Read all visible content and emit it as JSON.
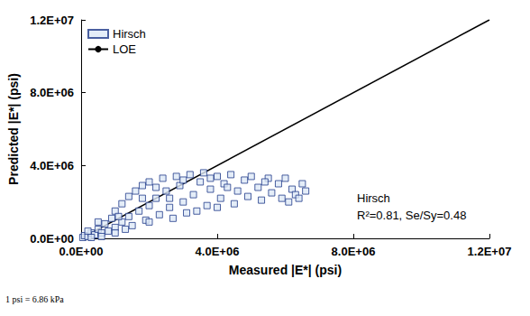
{
  "chart_data": {
    "type": "scatter",
    "x_label": "Measured |E*| (psi)",
    "y_label": "Predicted |E*| (psi)",
    "annotations": [
      "Hirsch",
      "R²=0.81, Se/Sy=0.48"
    ],
    "footnote": "1 psi = 6.86 kPa",
    "legend": "upper left",
    "grid": false,
    "xlim": [
      0,
      12000000
    ],
    "ylim": [
      0,
      12000000
    ],
    "xticks": [
      {
        "value": 0,
        "label": "0.0E+00"
      },
      {
        "value": 4000000,
        "label": "4.0E+06"
      },
      {
        "value": 8000000,
        "label": "8.0E+06"
      },
      {
        "value": 12000000,
        "label": "1.2E+07"
      }
    ],
    "yticks": [
      {
        "value": 0,
        "label": "0.0E+00"
      },
      {
        "value": 4000000,
        "label": "4.0E+06"
      },
      {
        "value": 8000000,
        "label": "8.0E+06"
      },
      {
        "value": 12000000,
        "label": "1.2E+07"
      }
    ],
    "series": [
      {
        "name": "Hirsch",
        "type": "scatter",
        "marker": "square",
        "color": "#1f3a8a",
        "x": [
          50000.0,
          100000.0,
          200000.0,
          300000.0,
          400000.0,
          500000.0,
          600000.0,
          700000.0,
          800000.0,
          900000.0,
          1000000.0,
          1000000.0,
          1200000.0,
          1200000.0,
          1400000.0,
          1400000.0,
          1500000.0,
          1600000.0,
          1700000.0,
          1800000.0,
          1900000.0,
          2000000.0,
          2000000.0,
          2200000.0,
          2300000.0,
          2400000.0,
          2500000.0,
          2600000.0,
          2800000.0,
          2900000.0,
          3000000.0,
          3100000.0,
          3200000.0,
          3300000.0,
          3500000.0,
          3600000.0,
          3700000.0,
          3800000.0,
          4000000.0,
          4100000.0,
          4200000.0,
          4400000.0,
          4500000.0,
          4600000.0,
          4800000.0,
          4900000.0,
          5000000.0,
          5200000.0,
          5300000.0,
          5500000.0,
          5600000.0,
          5800000.0,
          5900000.0,
          6000000.0,
          6200000.0,
          6300000.0,
          6500000.0,
          6600000.0,
          300000.0,
          600000.0,
          1000000.0,
          200000.0,
          500000.0,
          1300000.0,
          2000000.0,
          2700000.0,
          3400000.0,
          4000000.0,
          4300000.0,
          3000000.0,
          2200000.0,
          1100000.0,
          1800000.0,
          2600000.0,
          3800000.0,
          5400000.0,
          6100000.0,
          6400000.0
        ],
        "values": [
          50000.0,
          150000.0,
          100000.0,
          300000.0,
          200000.0,
          500000.0,
          300000.0,
          800000.0,
          400000.0,
          1100000.0,
          600000.0,
          1500000.0,
          900000.0,
          1900000.0,
          1200000.0,
          2300000.0,
          700000.0,
          2600000.0,
          1500000.0,
          2900000.0,
          1000000.0,
          1800000.0,
          3100000.0,
          2200000.0,
          1300000.0,
          3300000.0,
          2600000.0,
          1700000.0,
          3400000.0,
          2900000.0,
          2000000.0,
          1400000.0,
          3500000.0,
          2400000.0,
          3100000.0,
          3600000.0,
          1800000.0,
          2700000.0,
          3400000.0,
          2200000.0,
          3000000.0,
          3500000.0,
          1900000.0,
          2600000.0,
          3200000.0,
          2300000.0,
          3400000.0,
          2800000.0,
          2100000.0,
          3300000.0,
          2500000.0,
          3000000.0,
          2200000.0,
          3300000.0,
          2700000.0,
          2400000.0,
          3000000.0,
          2600000.0,
          50000.0,
          100000.0,
          300000.0,
          400000.0,
          900000.0,
          500000.0,
          900000.0,
          1100000.0,
          1500000.0,
          1700000.0,
          2800000.0,
          3200000.0,
          2800000.0,
          1200000.0,
          2200000.0,
          2200000.0,
          3300000.0,
          3100000.0,
          2000000.0,
          2200000.0
        ]
      },
      {
        "name": "LOE",
        "type": "line",
        "line_style": "solid",
        "color": "#000000",
        "x": [
          0,
          12000000
        ],
        "values": [
          0,
          12000000
        ]
      }
    ]
  }
}
